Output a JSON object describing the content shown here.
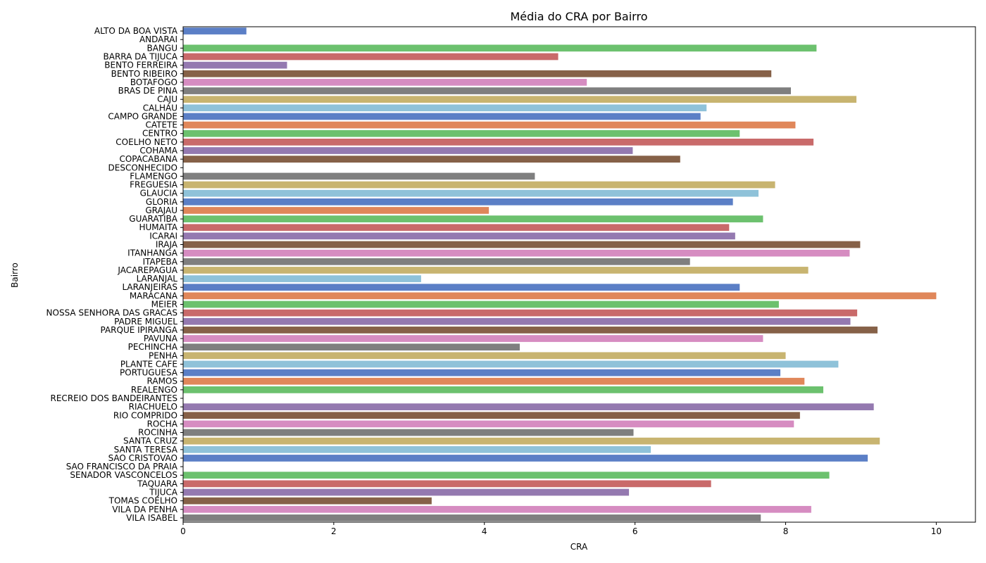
{
  "chart_data": {
    "type": "bar",
    "orientation": "horizontal",
    "title": "Média do CRA por Bairro",
    "xlabel": "CRA",
    "ylabel": "Bairro",
    "xlim": [
      0,
      10.52
    ],
    "xticks": [
      0,
      2,
      4,
      6,
      8,
      10
    ],
    "xtick_labels": [
      "0",
      "2",
      "4",
      "6",
      "8",
      "10"
    ],
    "grid": false,
    "palette": [
      "#5b7fc6",
      "#e0875a",
      "#6cc16e",
      "#c96a6a",
      "#9479b0",
      "#866148",
      "#d68cc1",
      "#7f7f7f",
      "#c8b470",
      "#8fc2d9"
    ],
    "categories": [
      "ALTO DA BOA VISTA",
      "ANDARAI",
      "BANGU",
      "BARRA DA TIJUCA",
      "BENTO FERREIRA",
      "BENTO RIBEIRO",
      "BOTAFOGO",
      "BRAS DE PINA",
      "CAJU",
      "CALHAU",
      "CAMPO GRANDE",
      "CATETE",
      "CENTRO",
      "COELHO NETO",
      "COHAMA",
      "COPACABANA",
      "DESCONHECIDO",
      "FLAMENGO",
      "FREGUESIA",
      "GLAUCIA",
      "GLORIA",
      "GRAJAU",
      "GUARATIBA",
      "HUMAITA",
      "ICARAI",
      "IRAJA",
      "ITANHANGA",
      "ITAPEBA",
      "JACAREPAGUA",
      "LARANJAL",
      "LARANJEIRAS",
      "MARACANA",
      "MEIER",
      "NOSSA SENHORA DAS GRACAS",
      "PADRE MIGUEL",
      "PARQUE IPIRANGA",
      "PAVUNA",
      "PECHINCHA",
      "PENHA",
      "PLANTE CAFE",
      "PORTUGUESA",
      "RAMOS",
      "REALENGO",
      "RECREIO DOS BANDEIRANTES",
      "RIACHUELO",
      "RIO COMPRIDO",
      "ROCHA",
      "ROCINHA",
      "SANTA CRUZ",
      "SANTA TERESA",
      "SAO CRISTOVAO",
      "SAO FRANCISCO DA PRAIA",
      "SENADOR VASCONCELOS",
      "TAQUARA",
      "TIJUCA",
      "TOMAS COELHO",
      "VILA DA PENHA",
      "VILA ISABEL"
    ],
    "values": [
      0.84,
      0,
      8.41,
      4.98,
      1.38,
      7.81,
      5.36,
      8.07,
      8.94,
      6.95,
      6.87,
      8.13,
      7.39,
      8.37,
      5.97,
      6.6,
      0,
      4.67,
      7.86,
      7.64,
      7.3,
      4.06,
      7.7,
      7.25,
      7.33,
      8.99,
      8.85,
      6.73,
      8.3,
      3.16,
      7.39,
      10.0,
      7.91,
      8.95,
      8.86,
      9.22,
      7.7,
      4.47,
      8.0,
      8.7,
      7.93,
      8.25,
      8.5,
      0,
      9.17,
      8.19,
      8.11,
      5.98,
      9.25,
      6.21,
      9.09,
      0,
      8.58,
      7.01,
      5.92,
      3.3,
      8.34,
      7.67
    ]
  }
}
